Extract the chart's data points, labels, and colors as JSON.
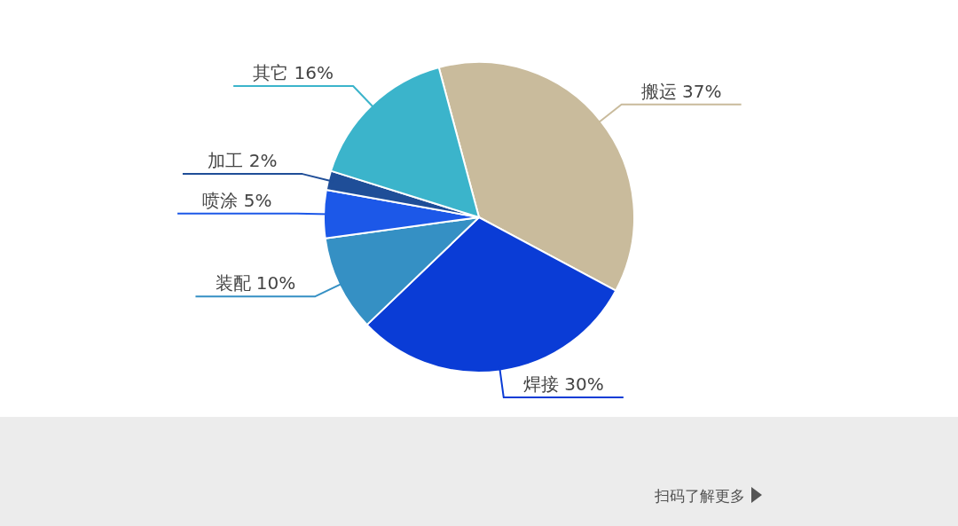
{
  "chart_data": {
    "type": "pie",
    "categories": [
      "搬运",
      "焊接",
      "装配",
      "喷涂",
      "加工",
      "其它"
    ],
    "values": [
      37,
      30,
      10,
      5,
      2,
      16
    ],
    "colors": [
      "#c9bb9c",
      "#0a3cd6",
      "#3590c4",
      "#1c58e8",
      "#1f4e98",
      "#3bb4cb"
    ],
    "value_labels": [
      "37%",
      "30%",
      "10%",
      "5%",
      "2%",
      "16%"
    ],
    "annotations": [
      "扫码了解更多"
    ]
  }
}
